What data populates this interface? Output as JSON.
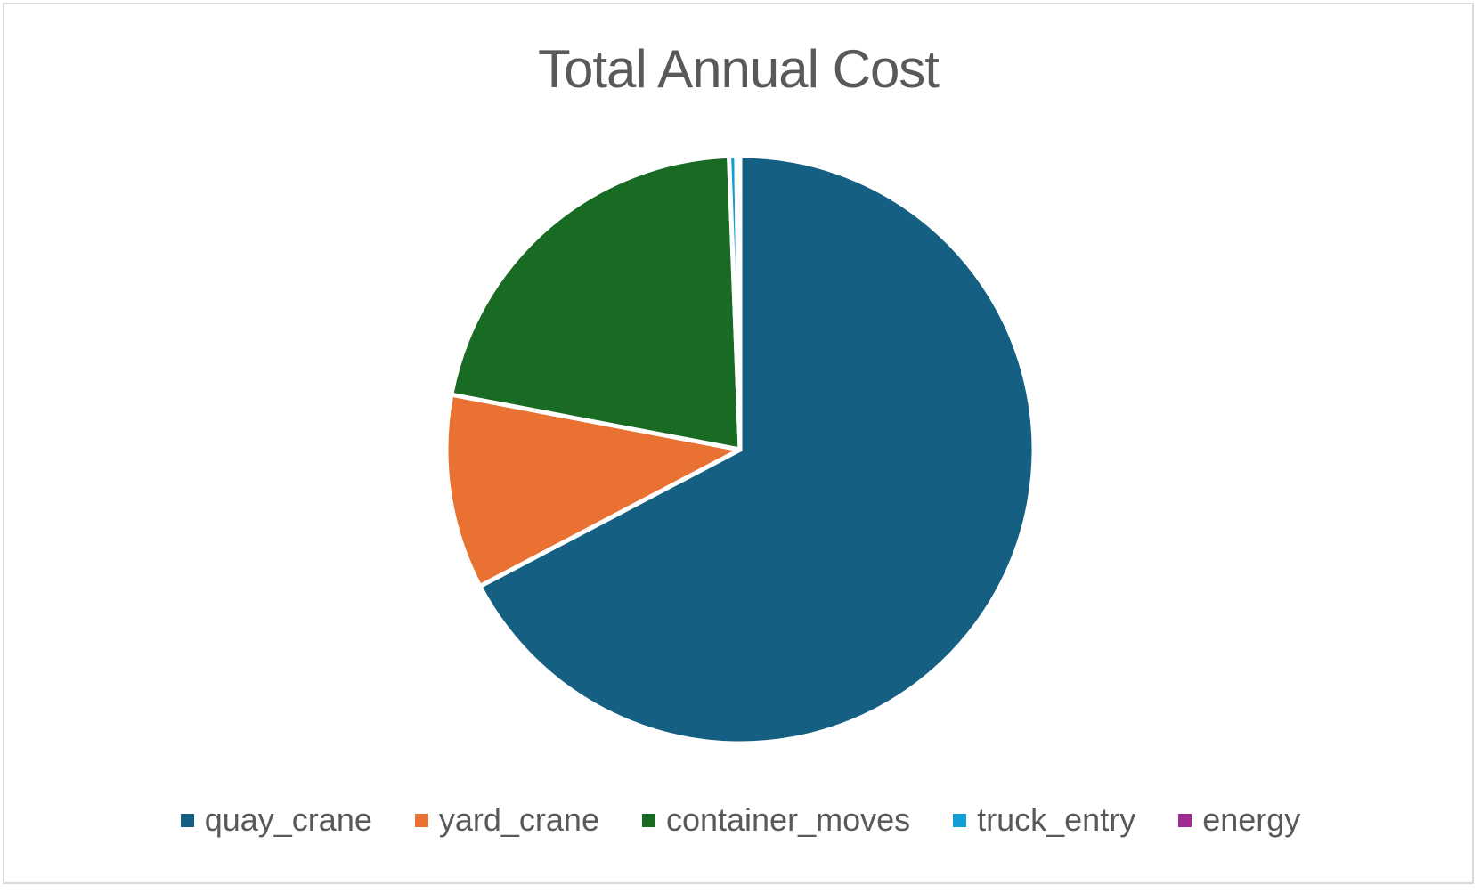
{
  "chart_data": {
    "type": "pie",
    "title": "Total Annual Cost",
    "categories": [
      "quay_crane",
      "yard_crane",
      "container_moves",
      "truck_entry",
      "energy"
    ],
    "values": [
      67.3,
      10.7,
      21.4,
      0.4,
      0.2
    ],
    "colors": [
      "#156082",
      "#E97132",
      "#196B24",
      "#0F9ED5",
      "#A02B93"
    ],
    "start_angle_deg": 0,
    "direction": "clockwise",
    "legend_position": "bottom"
  }
}
